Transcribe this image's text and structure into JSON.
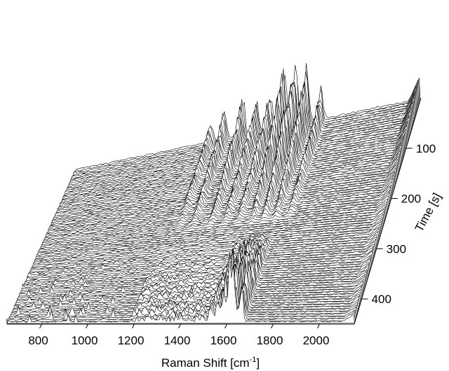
{
  "chart_data": {
    "type": "waterfall",
    "xlabel": "Raman Shift [cm",
    "xlabel_sup": "-1",
    "xlabel_suffix": "]",
    "xlim": [
      650,
      2150
    ],
    "x_ticks": [
      800,
      1000,
      1200,
      1400,
      1600,
      1800,
      2000
    ],
    "zlabel": "Time [s]",
    "zlim": [
      0,
      450
    ],
    "z_ticks": [
      100,
      200,
      300,
      400
    ],
    "n_spectra": 90,
    "colors": {
      "line": "#000000",
      "fill": "#ffffff"
    },
    "early_peaks": [
      {
        "x": 1240,
        "y": 55
      },
      {
        "x": 1300,
        "y": 80
      },
      {
        "x": 1380,
        "y": 105
      },
      {
        "x": 1440,
        "y": 100
      },
      {
        "x": 1500,
        "y": 110
      },
      {
        "x": 1560,
        "y": 175
      },
      {
        "x": 1610,
        "y": 205
      },
      {
        "x": 1660,
        "y": 160
      },
      {
        "x": 1720,
        "y": 90
      }
    ],
    "late_peaks": [
      {
        "x": 1530,
        "y": 40
      },
      {
        "x": 1560,
        "y": 60
      },
      {
        "x": 1585,
        "y": 110
      },
      {
        "x": 1610,
        "y": 160
      },
      {
        "x": 1630,
        "y": 140
      },
      {
        "x": 1660,
        "y": 120
      }
    ]
  }
}
